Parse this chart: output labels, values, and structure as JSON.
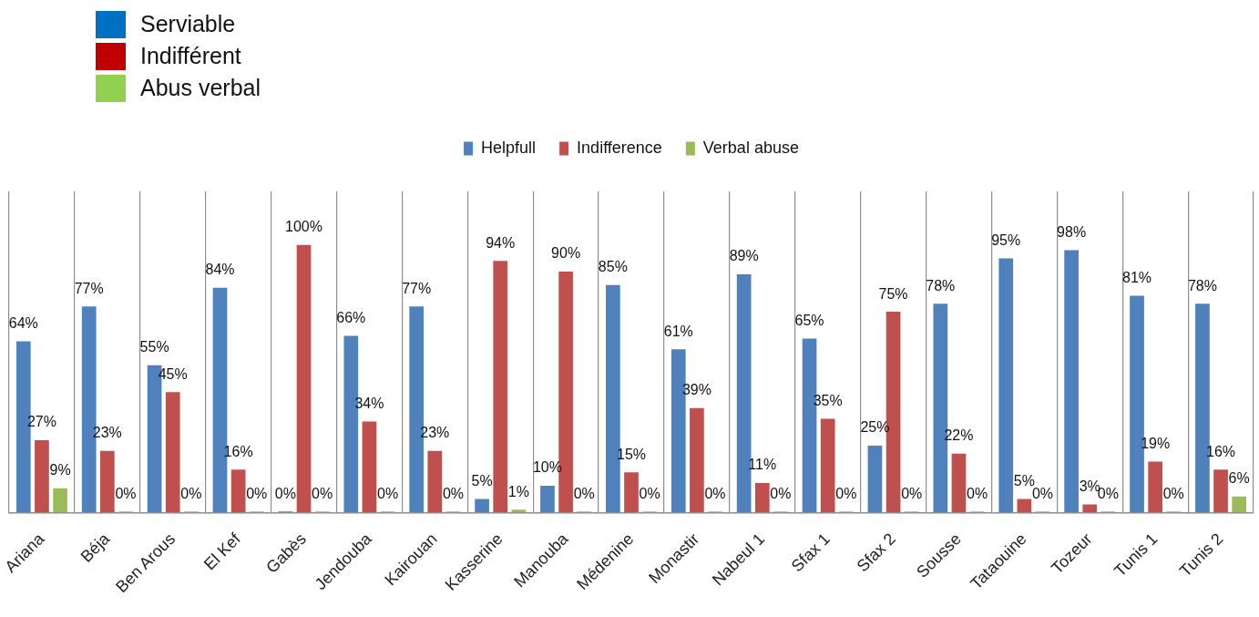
{
  "chart_data": {
    "type": "bar",
    "categories": [
      "Ariana",
      "Béja",
      "Ben Arous",
      "El Kef",
      "Gabès",
      "Jendouba",
      "Kairouan",
      "Kasserine",
      "Manouba",
      "Médenine",
      "Monastir",
      "Nabeul 1",
      "Sfax 1",
      "Sfax 2",
      "Sousse",
      "Tataouine",
      "Tozeur",
      "Tunis 1",
      "Tunis 2"
    ],
    "series": [
      {
        "name": "Helpfull",
        "color": "#4f81bd",
        "values": [
          64,
          77,
          55,
          84,
          0,
          66,
          77,
          5,
          10,
          85,
          61,
          89,
          65,
          25,
          78,
          95,
          98,
          81,
          78
        ],
        "value_labels": [
          "64%",
          "77%",
          "55%",
          "84%",
          "0%",
          "66%",
          "77%",
          "5%",
          "10%",
          "85%",
          "61%",
          "89%",
          "65%",
          "25%",
          "78%",
          "95%",
          "98%",
          "81%",
          "78%"
        ]
      },
      {
        "name": "Indifference",
        "color": "#c0504d",
        "values": [
          27,
          23,
          45,
          16,
          100,
          34,
          23,
          94,
          90,
          15,
          39,
          11,
          35,
          75,
          22,
          5,
          3,
          19,
          16
        ],
        "value_labels": [
          "27%",
          "23%",
          "45%",
          "16%",
          "100%",
          "34%",
          "23%",
          "94%",
          "90%",
          "15%",
          "39%",
          "11%",
          "35%",
          "75%",
          "22%",
          "5%",
          "3%",
          "19%",
          "16%"
        ]
      },
      {
        "name": "Verbal abuse",
        "color": "#9bbb59",
        "values": [
          9,
          0,
          0,
          0,
          0,
          0,
          0,
          1,
          0,
          0,
          0,
          0,
          0,
          0,
          0,
          0,
          0,
          0,
          6
        ],
        "value_labels": [
          "9%",
          "0%",
          "0%",
          "0%",
          "0%",
          "0%",
          "0%",
          "1%",
          "0%",
          "0%",
          "0%",
          "0%",
          "0%",
          "0%",
          "0%",
          "0%",
          "0%",
          "0%",
          "6%"
        ]
      }
    ],
    "legend": "top",
    "grid": "x",
    "tick_labels": "x",
    "annotations": [
      "Serviable",
      "Indifférent",
      "Abus verbal"
    ]
  }
}
